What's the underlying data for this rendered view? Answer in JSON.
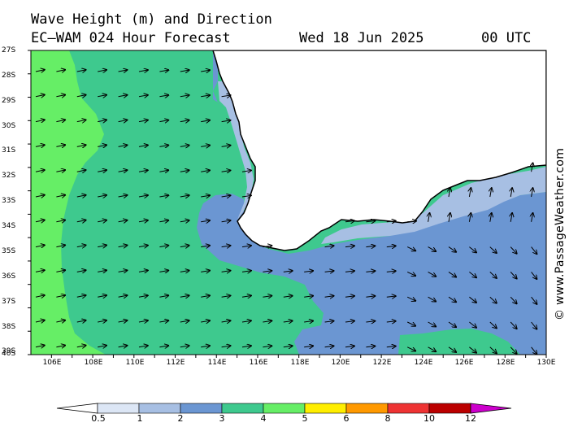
{
  "header": {
    "line1": "Wave Height (m) and Direction",
    "model_label": "EC—WAM 024 Hour Forecast",
    "date": "Wed 18 Jun 2025",
    "time": "00 UTC"
  },
  "credit": "© www.PassageWeather.com",
  "map": {
    "lat_labels": [
      "27S",
      "28S",
      "29S",
      "30S",
      "31S",
      "32S",
      "33S",
      "34S",
      "35S",
      "36S",
      "37S",
      "38S",
      "39S",
      "40S"
    ],
    "lon_labels": [
      "106E",
      "108E",
      "110E",
      "112E",
      "114E",
      "116E",
      "118E",
      "120E",
      "122E",
      "124E",
      "126E",
      "128E",
      "130E"
    ],
    "lon_range": [
      105,
      130
    ],
    "lat_range": [
      -27,
      -40
    ],
    "region": "South-west Australia",
    "colors": {
      "land": "#ffffff",
      "band_0_5_1": "#dce6f5",
      "band_1_2": "#a7bfe3",
      "band_2_3": "#6b96d2",
      "band_3_4": "#3ec98e",
      "band_4_5": "#66ee66",
      "coastline": "#000000"
    }
  },
  "colorbar": {
    "labels": [
      "0.5",
      "1",
      "2",
      "3",
      "4",
      "5",
      "6",
      "8",
      "10",
      "12"
    ],
    "colors": [
      "#ffffff",
      "#dce6f5",
      "#a7bfe3",
      "#6b96d2",
      "#3ec98e",
      "#66ee66",
      "#ffee00",
      "#ff9900",
      "#ee3333",
      "#bb0000",
      "#cc00cc"
    ]
  }
}
